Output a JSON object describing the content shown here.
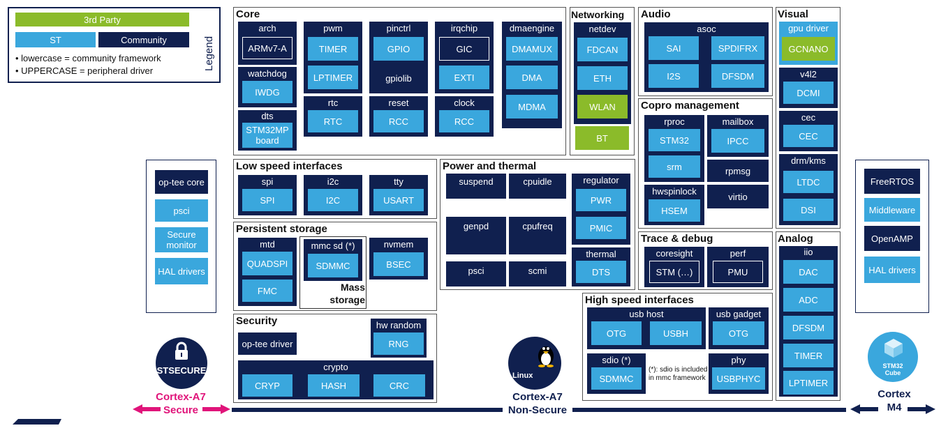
{
  "legend": {
    "third_party": "3rd Party",
    "st": "ST",
    "community": "Community",
    "line1": "lowercase = community framework",
    "line2": "UPPERCASE = peripheral  driver",
    "title": "Legend"
  },
  "core": {
    "title": "Core",
    "arch": "arch",
    "armv7a": "ARMv7-A",
    "watchdog": "watchdog",
    "iwdg": "IWDG",
    "dts": "dts",
    "stm32mp_board": "STM32MP board",
    "pwm": "pwm",
    "timer": "TIMER",
    "lptimer": "LPTIMER",
    "rtc": "rtc",
    "rtc_drv": "RTC",
    "pinctrl": "pinctrl",
    "gpio": "GPIO",
    "gpiolib": "gpiolib",
    "reset": "reset",
    "rcc_reset": "RCC",
    "irqchip": "irqchip",
    "gic": "GIC",
    "exti": "EXTI",
    "clock": "clock",
    "rcc_clock": "RCC",
    "dmaengine": "dmaengine",
    "dmamux": "DMAMUX",
    "dma": "DMA",
    "mdma": "MDMA"
  },
  "networking": {
    "title": "Networking",
    "netdev": "netdev",
    "fdcan": "FDCAN",
    "eth": "ETH",
    "wlan": "WLAN",
    "bt": "BT"
  },
  "audio": {
    "title": "Audio",
    "asoc": "asoc",
    "sai": "SAI",
    "spdifrx": "SPDIFRX",
    "i2s": "I2S",
    "dfsdm": "DFSDM"
  },
  "visual": {
    "title": "Visual",
    "gpu_driver": "gpu driver",
    "gcnano": "GCNANO",
    "v4l2": "v4l2",
    "dcmi": "DCMI",
    "cec": "cec",
    "cec_drv": "CEC",
    "drm_kms": "drm/kms",
    "ltdc": "LTDC",
    "dsi": "DSI"
  },
  "copro": {
    "title": "Copro management",
    "rproc": "rproc",
    "stm32": "STM32",
    "srm": "srm",
    "mailbox": "mailbox",
    "ipcc": "IPCC",
    "rpmsg": "rpmsg",
    "hwspinlock": "hwspinlock",
    "hsem": "HSEM",
    "virtio": "virtio"
  },
  "lowspeed": {
    "title": "Low speed interfaces",
    "spi": "spi",
    "spi_drv": "SPI",
    "i2c": "i2c",
    "i2c_drv": "I2C",
    "tty": "tty",
    "usart": "USART"
  },
  "power": {
    "title": "Power and thermal",
    "suspend": "suspend",
    "cpuidle": "cpuidle",
    "genpd": "genpd",
    "cpufreq": "cpufreq",
    "psci": "psci",
    "scmi": "scmi",
    "regulator": "regulator",
    "pwr": "PWR",
    "pmic": "PMIC",
    "thermal": "thermal",
    "dts": "DTS"
  },
  "persistent": {
    "title": "Persistent storage",
    "mtd": "mtd",
    "quadspi": "QUADSPI",
    "fmc": "FMC",
    "mmcsd": "mmc sd (*)",
    "sdmmc": "SDMMC",
    "mass_storage": "Mass storage",
    "nvmem": "nvmem",
    "bsec": "BSEC"
  },
  "trace": {
    "title": "Trace & debug",
    "coresight": "coresight",
    "stm": "STM (…)",
    "perf": "perf",
    "pmu": "PMU"
  },
  "security": {
    "title": "Security",
    "optee_driver": "op-tee driver",
    "hw_random": "hw random",
    "rng": "RNG",
    "crypto": "crypto",
    "cryp": "CRYP",
    "hash": "HASH",
    "crc": "CRC"
  },
  "highspeed": {
    "title": "High speed interfaces",
    "usb_host": "usb host",
    "otg_host": "OTG",
    "usbh": "USBH",
    "usb_gadget": "usb gadget",
    "otg_gadget": "OTG",
    "sdio": "sdio (*)",
    "sdmmc": "SDMMC",
    "note": "(*): sdio is included in mmc framework",
    "phy": "phy",
    "usbphyc": "USBPHYC"
  },
  "analog": {
    "title": "Analog",
    "iio": "iio",
    "dac": "DAC",
    "adc": "ADC",
    "dfsdm": "DFSDM",
    "timer": "TIMER",
    "lptimer": "LPTIMER"
  },
  "secure_side": {
    "optee_core": "op-tee core",
    "psci": "psci",
    "secure_monitor": "Secure monitor",
    "hal": "HAL drivers"
  },
  "m4_side": {
    "freertos": "FreeRTOS",
    "middleware": "Middleware",
    "openamp": "OpenAMP",
    "hal": "HAL drivers"
  },
  "footer": {
    "secure_logo": "STSECURE",
    "linux_logo": "Linux",
    "cube_logo": "STM32 Cube",
    "a7_secure_1": "Cortex-A7",
    "a7_secure_2": "Secure",
    "a7_nonsecure_1": "Cortex-A7",
    "a7_nonsecure_2": "Non-Secure",
    "m4_1": "Cortex",
    "m4_2": "M4"
  },
  "colors": {
    "navy": "#10204f",
    "light_blue": "#3aa7dd",
    "green": "#8bbb2a",
    "magenta": "#e0147a"
  }
}
